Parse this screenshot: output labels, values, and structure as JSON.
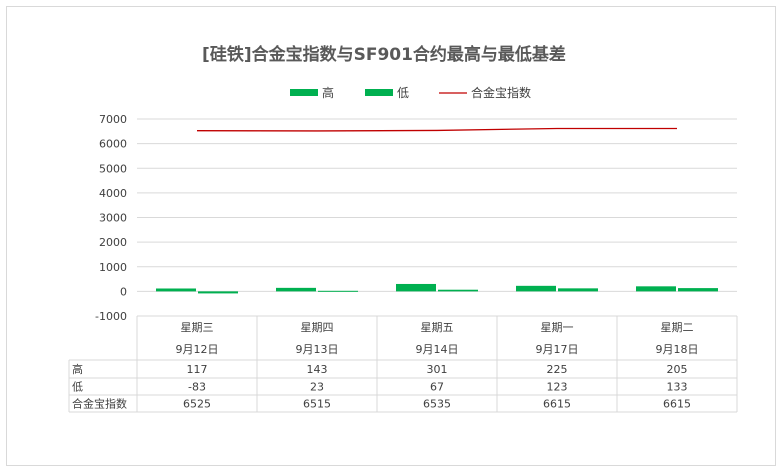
{
  "chart_data": {
    "type": "bar",
    "title": "[硅铁]合金宝指数与SF901合约最高与最低基差",
    "categories": [
      {
        "weekday": "星期三",
        "date": "9月12日"
      },
      {
        "weekday": "星期四",
        "date": "9月13日"
      },
      {
        "weekday": "星期五",
        "date": "9月14日"
      },
      {
        "weekday": "星期一",
        "date": "9月17日"
      },
      {
        "weekday": "星期二",
        "date": "9月18日"
      }
    ],
    "series": [
      {
        "name": "高",
        "kind": "bar",
        "color": "#00b050",
        "values": [
          117,
          143,
          301,
          225,
          205
        ]
      },
      {
        "name": "低",
        "kind": "bar",
        "color": "#00b050",
        "values": [
          -83,
          23,
          67,
          123,
          133
        ]
      },
      {
        "name": "合金宝指数",
        "kind": "line",
        "color": "#c00000",
        "values": [
          6525,
          6515,
          6535,
          6615,
          6615
        ]
      }
    ],
    "ylim": [
      -1000,
      7000
    ],
    "yticks": [
      -1000,
      0,
      1000,
      2000,
      3000,
      4000,
      5000,
      6000,
      7000
    ],
    "legend_position": "top",
    "grid": true,
    "data_table": true
  }
}
